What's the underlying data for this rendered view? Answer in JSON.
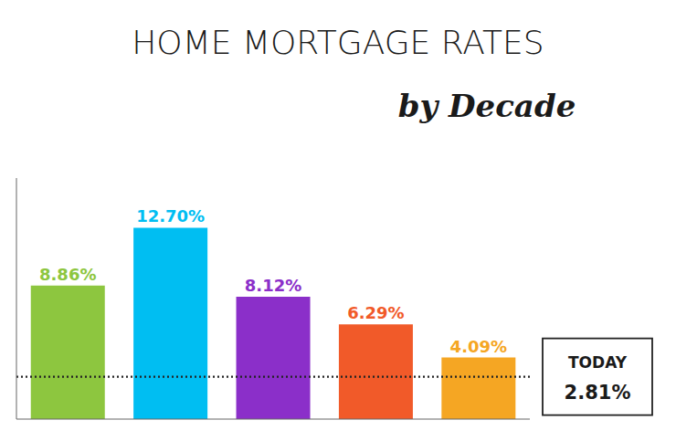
{
  "chart_data": {
    "type": "bar",
    "title": "HOME MORTGAGE RATES",
    "subtitle": "by Decade",
    "categories": [
      null,
      null,
      null,
      null,
      null
    ],
    "values": [
      8.86,
      12.7,
      8.12,
      6.29,
      4.09
    ],
    "value_labels": [
      "8.86%",
      "12.70%",
      "8.12%",
      "6.29%",
      "4.09%"
    ],
    "colors": [
      "#8dc63f",
      "#00bef2",
      "#8b2fc9",
      "#f15a29",
      "#f5a623"
    ],
    "data_labels": true,
    "ylim": [
      0,
      16.0
    ],
    "tick_labels": false,
    "grid": false,
    "reference_line": {
      "value": 2.81,
      "label": "TODAY",
      "value_label": "2.81%",
      "color": "#222222",
      "line_style": "dotted"
    }
  }
}
